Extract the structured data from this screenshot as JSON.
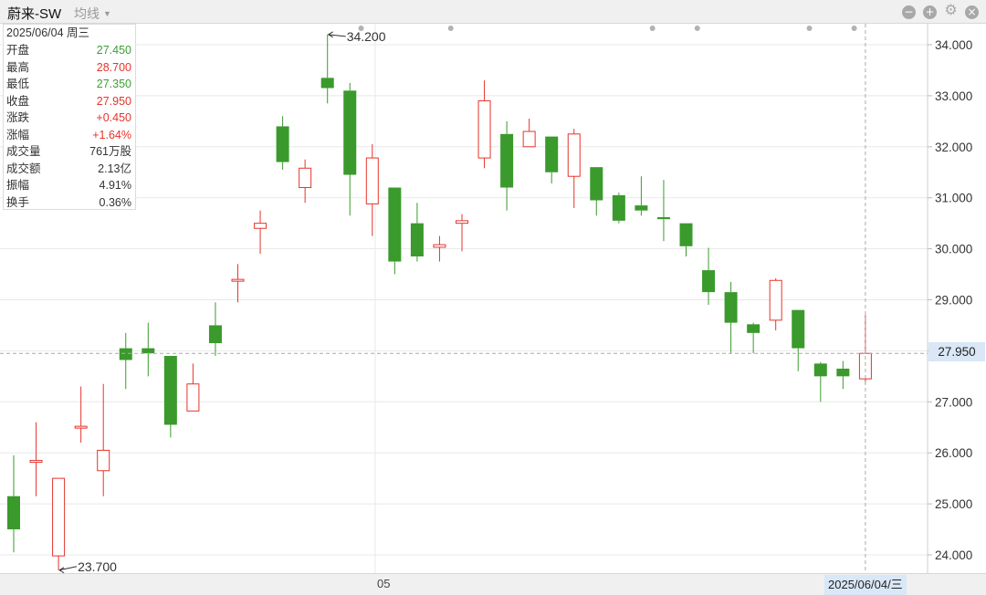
{
  "header": {
    "stock_name": "蔚来-SW",
    "ma_label": "均线"
  },
  "info_panel": {
    "date": "2025/06/04 周三",
    "rows": [
      {
        "label": "开盘",
        "value": "27.450",
        "tone": "green"
      },
      {
        "label": "最高",
        "value": "28.700",
        "tone": "red"
      },
      {
        "label": "最低",
        "value": "27.350",
        "tone": "green"
      },
      {
        "label": "收盘",
        "value": "27.950",
        "tone": "red"
      },
      {
        "label": "涨跌",
        "value": "+0.450",
        "tone": "red"
      },
      {
        "label": "涨幅",
        "value": "+1.64%",
        "tone": "red"
      },
      {
        "label": "成交量",
        "value": "761万股",
        "tone": "dark"
      },
      {
        "label": "成交额",
        "value": "2.13亿",
        "tone": "dark"
      },
      {
        "label": "振幅",
        "value": "4.91%",
        "tone": "dark"
      },
      {
        "label": "换手",
        "value": "0.36%",
        "tone": "dark"
      }
    ]
  },
  "x_axis": {
    "tick_label": "05"
  },
  "cursor": {
    "date_label": "2025/06/04/三",
    "price_label": "27.950"
  },
  "colors": {
    "up": "#e6342c",
    "down": "#3a9a2c",
    "grid": "#e8e8e8",
    "cursor": "#aaaaaa"
  },
  "chart_data": {
    "type": "candlestick",
    "y_axis": {
      "range": [
        23.7,
        34.35
      ],
      "ticks": [
        "24.000",
        "25.000",
        "26.000",
        "27.000",
        "28.000",
        "29.000",
        "30.000",
        "31.000",
        "32.000",
        "33.000",
        "34.000"
      ]
    },
    "annotations": [
      {
        "text": "34.200",
        "kind": "max"
      },
      {
        "text": "23.700",
        "kind": "min"
      }
    ],
    "candles": [
      {
        "open": 25.15,
        "high": 25.95,
        "low": 24.05,
        "close": 24.5
      },
      {
        "open": 25.82,
        "high": 26.6,
        "low": 25.15,
        "close": 25.85
      },
      {
        "open": 23.98,
        "high": 25.5,
        "low": 23.7,
        "close": 25.5
      },
      {
        "open": 26.5,
        "high": 27.3,
        "low": 26.2,
        "close": 26.52
      },
      {
        "open": 25.65,
        "high": 27.35,
        "low": 25.15,
        "close": 26.05
      },
      {
        "open": 28.05,
        "high": 28.35,
        "low": 27.25,
        "close": 27.82
      },
      {
        "open": 28.05,
        "high": 28.55,
        "low": 27.5,
        "close": 27.95
      },
      {
        "open": 27.9,
        "high": 27.9,
        "low": 26.3,
        "close": 26.55
      },
      {
        "open": 26.82,
        "high": 27.75,
        "low": 26.82,
        "close": 27.35
      },
      {
        "open": 28.5,
        "high": 28.95,
        "low": 27.9,
        "close": 28.15
      },
      {
        "open": 29.4,
        "high": 29.7,
        "low": 28.95,
        "close": 29.4
      },
      {
        "open": 30.4,
        "high": 30.75,
        "low": 29.9,
        "close": 30.5
      },
      {
        "open": 32.4,
        "high": 32.6,
        "low": 31.55,
        "close": 31.7
      },
      {
        "open": 31.2,
        "high": 31.75,
        "low": 30.9,
        "close": 31.58
      },
      {
        "open": 33.35,
        "high": 34.2,
        "low": 32.85,
        "close": 33.15
      },
      {
        "open": 33.1,
        "high": 33.25,
        "low": 30.65,
        "close": 31.45
      },
      {
        "open": 30.88,
        "high": 32.05,
        "low": 30.25,
        "close": 31.78
      },
      {
        "open": 31.2,
        "high": 31.2,
        "low": 29.5,
        "close": 29.75
      },
      {
        "open": 30.5,
        "high": 30.9,
        "low": 29.75,
        "close": 29.85
      },
      {
        "open": 30.03,
        "high": 30.25,
        "low": 29.75,
        "close": 30.08
      },
      {
        "open": 30.5,
        "high": 30.68,
        "low": 29.95,
        "close": 30.55
      },
      {
        "open": 31.78,
        "high": 33.3,
        "low": 31.58,
        "close": 32.9
      },
      {
        "open": 32.25,
        "high": 32.5,
        "low": 30.75,
        "close": 31.2
      },
      {
        "open": 32.0,
        "high": 32.55,
        "low": 32.0,
        "close": 32.3
      },
      {
        "open": 32.2,
        "high": 32.2,
        "low": 31.28,
        "close": 31.5
      },
      {
        "open": 31.42,
        "high": 32.35,
        "low": 30.8,
        "close": 32.25
      },
      {
        "open": 31.6,
        "high": 31.6,
        "low": 30.65,
        "close": 30.95
      },
      {
        "open": 31.05,
        "high": 31.1,
        "low": 30.5,
        "close": 30.55
      },
      {
        "open": 30.85,
        "high": 31.42,
        "low": 30.65,
        "close": 30.75
      },
      {
        "open": 30.62,
        "high": 31.35,
        "low": 30.15,
        "close": 30.58
      },
      {
        "open": 30.5,
        "high": 30.5,
        "low": 29.85,
        "close": 30.05
      },
      {
        "open": 29.58,
        "high": 30.02,
        "low": 28.9,
        "close": 29.15
      },
      {
        "open": 29.15,
        "high": 29.35,
        "low": 27.95,
        "close": 28.55
      },
      {
        "open": 28.52,
        "high": 28.55,
        "low": 27.95,
        "close": 28.35
      },
      {
        "open": 28.6,
        "high": 29.42,
        "low": 28.4,
        "close": 29.38
      },
      {
        "open": 28.8,
        "high": 28.8,
        "low": 27.6,
        "close": 28.05
      },
      {
        "open": 27.75,
        "high": 27.78,
        "low": 27.0,
        "close": 27.5
      },
      {
        "open": 27.65,
        "high": 27.8,
        "low": 27.25,
        "close": 27.5
      },
      {
        "open": 27.45,
        "high": 28.7,
        "low": 27.35,
        "close": 27.95
      }
    ],
    "marker_dots_after_candle": [
      0,
      15,
      19,
      28,
      30,
      35,
      37
    ]
  }
}
